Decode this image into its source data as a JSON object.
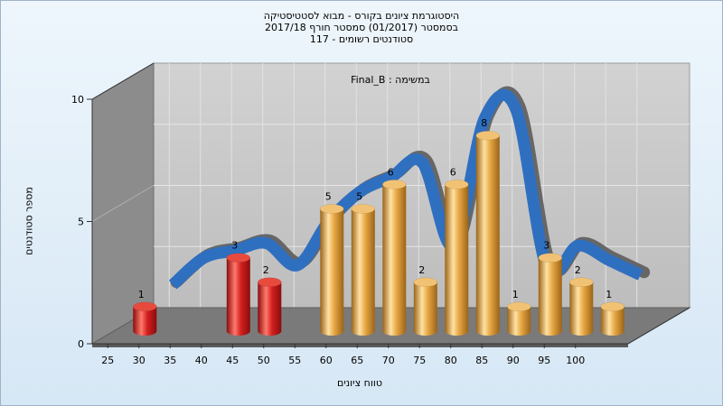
{
  "titles": {
    "line1": "היסטוגרמת ציונים בקורס - מבוא לסטטיסטיקה",
    "line2": "בסמסטר  (01/2017)  סמסטר חורף 2017/18",
    "line3": "סטודנטים רשומים - 117"
  },
  "colors": {
    "fail": "#d42020",
    "pass": "#e6a642",
    "curve": "#2f6fc0",
    "back_wall": "#c8c8c8",
    "side_wall": "#8c8c8c",
    "floor": "#7a7a7a"
  },
  "chart_data": {
    "type": "bar",
    "title": "Final_B : במשימה",
    "xlabel": "טווח ציונים",
    "ylabel": "מספר סטודנטים",
    "ylim": [
      0,
      10
    ],
    "yticks": [
      "0",
      "5",
      "10"
    ],
    "x_ticks": [
      "25",
      "30",
      "35",
      "40",
      "45",
      "50",
      "55",
      "60",
      "65",
      "70",
      "75",
      "80",
      "85",
      "90",
      "95",
      "100"
    ],
    "bars": [
      {
        "x": 27.5,
        "value": 1,
        "group": "fail"
      },
      {
        "x": 42.5,
        "value": 3,
        "group": "fail"
      },
      {
        "x": 47.5,
        "value": 2,
        "group": "fail"
      },
      {
        "x": 57.5,
        "value": 5,
        "group": "pass"
      },
      {
        "x": 62.5,
        "value": 5,
        "group": "pass"
      },
      {
        "x": 67.5,
        "value": 6,
        "group": "pass"
      },
      {
        "x": 72.5,
        "value": 2,
        "group": "pass"
      },
      {
        "x": 77.5,
        "value": 6,
        "group": "pass"
      },
      {
        "x": 82.5,
        "value": 8,
        "group": "pass"
      },
      {
        "x": 87.5,
        "value": 1,
        "group": "pass"
      },
      {
        "x": 92.5,
        "value": 3,
        "group": "pass"
      },
      {
        "x": 97.5,
        "value": 2,
        "group": "pass"
      },
      {
        "x": 102.5,
        "value": 1,
        "group": "pass"
      }
    ],
    "curve": {
      "x": [
        30,
        35,
        40,
        45,
        50,
        55,
        60,
        65,
        70,
        75,
        80,
        85,
        90,
        95,
        100,
        105
      ],
      "y": [
        1.6,
        2.7,
        3.0,
        3.3,
        2.4,
        4.2,
        5.4,
        6.0,
        6.6,
        3.2,
        8.4,
        8.8,
        2.3,
        3.2,
        2.6,
        2.0
      ]
    },
    "grid": true,
    "legend": "none"
  }
}
